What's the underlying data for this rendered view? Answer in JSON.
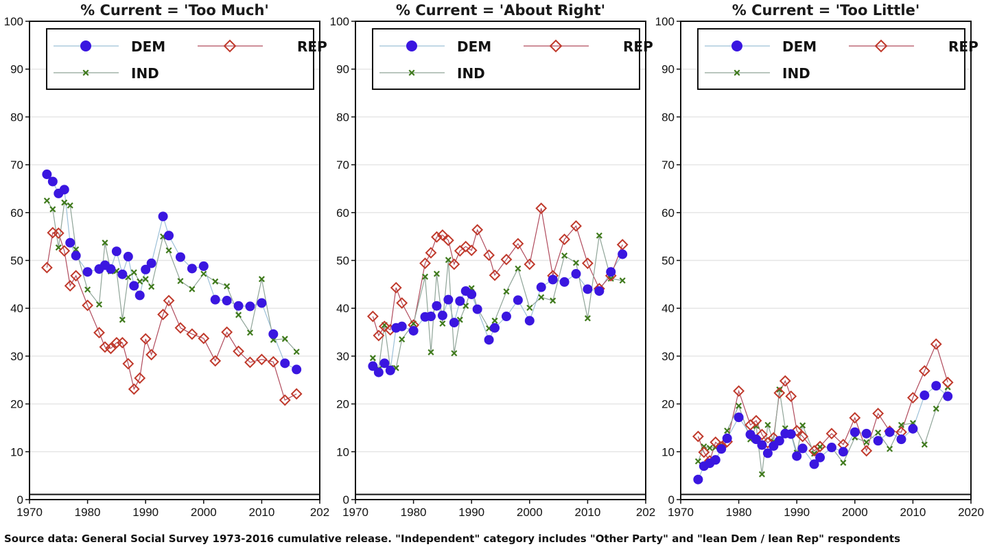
{
  "footer": {
    "source": "Source data:  General Social Survey 1973-2016 cumulative release.  \"Independent\" category includes \"Other Party\" and \"lean Dem / lean Rep\" respondents"
  },
  "colors": {
    "dem": "#3a16e0",
    "rep": "#c0392b",
    "ind": "#3f7a1c",
    "dem_line": "#9cc0d8",
    "rep_line": "#b04a5c",
    "ind_line": "#8fa498"
  },
  "chart_data": [
    {
      "type": "scatter",
      "title": "% Current = 'Too Much'",
      "xlabel": "",
      "ylabel": "",
      "xlim": [
        1970,
        2020
      ],
      "ylim": [
        0,
        100
      ],
      "xticks": [
        "1970",
        "1980",
        "1990",
        "2000",
        "2010",
        "202"
      ],
      "yticks": [
        "0",
        "10",
        "20",
        "30",
        "40",
        "50",
        "60",
        "70",
        "80",
        "90",
        "100"
      ],
      "grid": "horizontal",
      "legend": "top",
      "series": [
        {
          "name": "DEM",
          "marker": "circle",
          "x": [
            1973,
            1974,
            1975,
            1976,
            1977,
            1978,
            1980,
            1982,
            1983,
            1984,
            1985,
            1986,
            1987,
            1988,
            1989,
            1990,
            1991,
            1993,
            1994,
            1996,
            1998,
            2000,
            2002,
            2004,
            2006,
            2008,
            2010,
            2012,
            2014,
            2016
          ],
          "y": [
            68.0,
            66.5,
            64.0,
            64.8,
            53.7,
            51.0,
            47.6,
            48.2,
            49.0,
            48.2,
            51.9,
            47.1,
            50.8,
            44.7,
            42.7,
            48.1,
            49.4,
            59.2,
            55.2,
            50.7,
            48.3,
            48.8,
            41.8,
            41.6,
            40.5,
            40.4,
            41.1,
            34.6,
            28.5,
            27.2
          ]
        },
        {
          "name": "REP",
          "marker": "diamond",
          "x": [
            1973,
            1974,
            1975,
            1976,
            1977,
            1978,
            1980,
            1982,
            1983,
            1984,
            1985,
            1986,
            1987,
            1988,
            1989,
            1990,
            1991,
            1993,
            1994,
            1996,
            1998,
            2000,
            2002,
            2004,
            2006,
            2008,
            2010,
            2012,
            2014,
            2016
          ],
          "y": [
            48.5,
            55.8,
            55.7,
            52.0,
            44.7,
            46.8,
            40.6,
            34.9,
            31.9,
            31.6,
            32.8,
            32.8,
            28.4,
            23.1,
            25.4,
            33.6,
            30.3,
            38.7,
            41.6,
            35.9,
            34.6,
            33.7,
            29.0,
            35.0,
            31.0,
            28.7,
            29.3,
            28.8,
            20.8,
            22.1
          ]
        },
        {
          "name": "IND",
          "marker": "x",
          "x": [
            1973,
            1974,
            1975,
            1976,
            1977,
            1978,
            1980,
            1982,
            1983,
            1984,
            1985,
            1986,
            1987,
            1988,
            1989,
            1990,
            1991,
            1993,
            1994,
            1996,
            1998,
            2000,
            2002,
            2004,
            2006,
            2008,
            2010,
            2012,
            2014,
            2016
          ],
          "y": [
            62.5,
            60.7,
            52.7,
            62.1,
            61.5,
            52.3,
            43.9,
            40.8,
            53.7,
            47.7,
            47.8,
            37.6,
            46.5,
            47.5,
            45.6,
            46.1,
            44.5,
            55.0,
            52.1,
            45.7,
            44.0,
            47.2,
            45.6,
            44.6,
            38.6,
            34.9,
            46.1,
            33.4,
            33.6,
            30.9
          ]
        }
      ]
    },
    {
      "type": "scatter",
      "title": "% Current = 'About Right'",
      "xlabel": "",
      "ylabel": "",
      "xlim": [
        1970,
        2020
      ],
      "ylim": [
        0,
        100
      ],
      "xticks": [
        "1970",
        "1980",
        "1990",
        "2000",
        "2010",
        "202"
      ],
      "yticks": [
        "0",
        "10",
        "20",
        "30",
        "40",
        "50",
        "60",
        "70",
        "80",
        "90",
        "100"
      ],
      "grid": "horizontal",
      "legend": "top",
      "series": [
        {
          "name": "DEM",
          "marker": "circle",
          "x": [
            1973,
            1974,
            1975,
            1976,
            1977,
            1978,
            1980,
            1982,
            1983,
            1984,
            1985,
            1986,
            1987,
            1988,
            1989,
            1990,
            1991,
            1993,
            1994,
            1996,
            1998,
            2000,
            2002,
            2004,
            2006,
            2008,
            2010,
            2012,
            2014,
            2016
          ],
          "y": [
            27.9,
            26.6,
            28.5,
            27.0,
            35.9,
            36.2,
            35.3,
            38.2,
            38.3,
            40.5,
            38.5,
            41.8,
            37.0,
            41.5,
            43.6,
            42.9,
            39.8,
            33.4,
            35.9,
            38.3,
            41.7,
            37.4,
            44.4,
            46.0,
            45.5,
            47.2,
            44.0,
            43.6,
            47.6,
            51.3
          ]
        },
        {
          "name": "REP",
          "marker": "diamond",
          "x": [
            1973,
            1974,
            1975,
            1976,
            1977,
            1978,
            1980,
            1982,
            1983,
            1984,
            1985,
            1986,
            1987,
            1988,
            1989,
            1990,
            1991,
            1993,
            1994,
            1996,
            1998,
            2000,
            2002,
            2004,
            2006,
            2008,
            2010,
            2012,
            2014,
            2016
          ],
          "y": [
            38.3,
            34.3,
            36.2,
            35.5,
            44.3,
            41.1,
            36.5,
            49.4,
            51.6,
            54.9,
            55.3,
            54.2,
            49.2,
            52.0,
            52.9,
            52.1,
            56.4,
            51.1,
            46.9,
            50.2,
            53.5,
            49.2,
            60.9,
            46.8,
            54.4,
            57.2,
            49.4,
            44.1,
            46.8,
            53.3
          ]
        },
        {
          "name": "IND",
          "marker": "x",
          "x": [
            1973,
            1974,
            1975,
            1976,
            1977,
            1978,
            1980,
            1982,
            1983,
            1984,
            1985,
            1986,
            1987,
            1988,
            1989,
            1990,
            1991,
            1993,
            1994,
            1996,
            1998,
            2000,
            2002,
            2004,
            2006,
            2008,
            2010,
            2012,
            2014,
            2016
          ],
          "y": [
            29.6,
            27.3,
            36.5,
            27.5,
            27.5,
            33.5,
            36.8,
            46.6,
            30.8,
            47.2,
            36.8,
            50.1,
            30.6,
            37.6,
            40.5,
            44.2,
            40.0,
            35.8,
            37.4,
            43.5,
            48.3,
            40.1,
            42.3,
            41.6,
            51.0,
            49.5,
            37.9,
            55.2,
            46.2,
            45.8
          ]
        }
      ]
    },
    {
      "type": "scatter",
      "title": "% Current = 'Too Little'",
      "xlabel": "",
      "ylabel": "",
      "xlim": [
        1970,
        2020
      ],
      "ylim": [
        0,
        100
      ],
      "xticks": [
        "1970",
        "1980",
        "1990",
        "2000",
        "2010",
        "2020"
      ],
      "yticks": [
        "0",
        "10",
        "20",
        "30",
        "40",
        "50",
        "60",
        "70",
        "80",
        "90",
        "100"
      ],
      "grid": "horizontal",
      "legend": "top",
      "series": [
        {
          "name": "DEM",
          "marker": "circle",
          "x": [
            1973,
            1974,
            1975,
            1976,
            1977,
            1978,
            1980,
            1982,
            1983,
            1984,
            1985,
            1986,
            1987,
            1988,
            1989,
            1990,
            1991,
            1993,
            1994,
            1996,
            1998,
            2000,
            2002,
            2004,
            2006,
            2008,
            2010,
            2012,
            2014,
            2016
          ],
          "y": [
            4.2,
            7.0,
            7.6,
            8.3,
            10.6,
            12.8,
            17.2,
            13.6,
            12.6,
            11.4,
            9.7,
            11.2,
            12.3,
            13.8,
            13.7,
            9.1,
            10.7,
            7.4,
            8.8,
            10.9,
            10.0,
            14.1,
            13.8,
            12.3,
            14.1,
            12.6,
            14.8,
            21.8,
            23.8,
            21.6
          ]
        },
        {
          "name": "REP",
          "marker": "diamond",
          "x": [
            1973,
            1974,
            1975,
            1976,
            1977,
            1978,
            1980,
            1982,
            1983,
            1984,
            1985,
            1986,
            1987,
            1988,
            1989,
            1990,
            1991,
            1993,
            1994,
            1996,
            1998,
            2000,
            2002,
            2004,
            2006,
            2008,
            2010,
            2012,
            2014,
            2016
          ],
          "y": [
            13.2,
            9.9,
            8.1,
            12.0,
            11.0,
            12.1,
            22.7,
            15.6,
            16.5,
            13.6,
            11.9,
            12.9,
            22.3,
            24.8,
            21.6,
            14.4,
            13.2,
            10.2,
            11.1,
            13.8,
            11.5,
            17.1,
            10.2,
            18.0,
            14.3,
            14.1,
            21.3,
            26.9,
            32.5,
            24.5
          ]
        },
        {
          "name": "IND",
          "marker": "x",
          "x": [
            1973,
            1974,
            1975,
            1976,
            1977,
            1978,
            1980,
            1982,
            1983,
            1984,
            1985,
            1986,
            1987,
            1988,
            1989,
            1990,
            1991,
            1993,
            1994,
            1996,
            1998,
            2000,
            2002,
            2004,
            2006,
            2008,
            2010,
            2012,
            2014,
            2016
          ],
          "y": [
            8.0,
            11.1,
            10.8,
            10.9,
            11.4,
            14.4,
            19.6,
            12.6,
            15.4,
            5.3,
            15.6,
            12.1,
            23.0,
            14.9,
            14.0,
            9.8,
            15.5,
            9.6,
            11.0,
            10.9,
            7.7,
            13.0,
            12.0,
            14.0,
            10.6,
            15.6,
            16.0,
            11.5,
            19.0,
            23.5
          ]
        }
      ]
    }
  ]
}
